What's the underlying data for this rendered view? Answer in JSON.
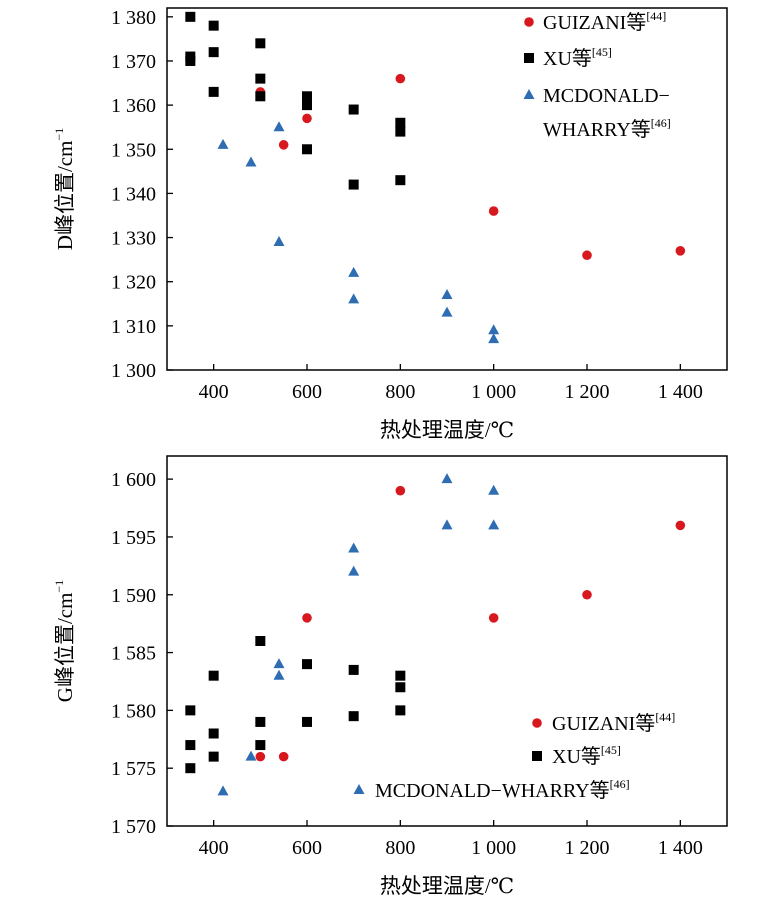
{
  "series_styles": [
    {
      "marker": "circle",
      "color": "#d7191f"
    },
    {
      "marker": "square",
      "color": "#000000"
    },
    {
      "marker": "triangle",
      "color": "#2f6db3"
    }
  ],
  "chart_data": [
    {
      "type": "scatter",
      "title": "",
      "xlabel": "热处理温度/℃",
      "ylabel": "D峰位置/cm",
      "ylabel_sup": "−1",
      "xlim": [
        300,
        1500
      ],
      "ylim": [
        1300,
        1382
      ],
      "xticks": [
        400,
        600,
        800,
        1000,
        1200,
        1400
      ],
      "xtick_labels": [
        "400",
        "600",
        "800",
        "1 000",
        "1 200",
        "1 400"
      ],
      "yticks": [
        1300,
        1310,
        1320,
        1330,
        1340,
        1350,
        1360,
        1370,
        1380
      ],
      "ytick_labels": [
        "1 300",
        "1 310",
        "1 320",
        "1 330",
        "1 340",
        "1 350",
        "1 360",
        "1 370",
        "1 380"
      ],
      "legend_position": "top-right",
      "series": [
        {
          "name": "GUIZANI等",
          "ref": "[44]",
          "points": [
            [
              500,
              1363
            ],
            [
              550,
              1351
            ],
            [
              600,
              1357
            ],
            [
              800,
              1366
            ],
            [
              1000,
              1336
            ],
            [
              1200,
              1326
            ],
            [
              1400,
              1327
            ]
          ]
        },
        {
          "name": "XU等",
          "ref": "[45]",
          "points": [
            [
              350,
              1380
            ],
            [
              350,
              1371
            ],
            [
              350,
              1370
            ],
            [
              400,
              1378
            ],
            [
              400,
              1372
            ],
            [
              400,
              1363
            ],
            [
              500,
              1374
            ],
            [
              500,
              1366
            ],
            [
              500,
              1362
            ],
            [
              600,
              1362
            ],
            [
              600,
              1361
            ],
            [
              600,
              1360
            ],
            [
              600,
              1350
            ],
            [
              700,
              1359
            ],
            [
              700,
              1342
            ],
            [
              800,
              1356
            ],
            [
              800,
              1354
            ],
            [
              800,
              1343
            ]
          ]
        },
        {
          "name": "MCDONALD−",
          "name_line2": "WHARRY等",
          "ref": "[46]",
          "points": [
            [
              420,
              1351
            ],
            [
              480,
              1347
            ],
            [
              540,
              1355
            ],
            [
              540,
              1329
            ],
            [
              700,
              1322
            ],
            [
              700,
              1316
            ],
            [
              900,
              1317
            ],
            [
              900,
              1313
            ],
            [
              1000,
              1309
            ],
            [
              1000,
              1307
            ]
          ]
        }
      ]
    },
    {
      "type": "scatter",
      "title": "",
      "xlabel": "热处理温度/℃",
      "ylabel": "G峰位置/cm",
      "ylabel_sup": "−1",
      "xlim": [
        300,
        1500
      ],
      "ylim": [
        1570,
        1602
      ],
      "xticks": [
        400,
        600,
        800,
        1000,
        1200,
        1400
      ],
      "xtick_labels": [
        "400",
        "600",
        "800",
        "1 000",
        "1 200",
        "1 400"
      ],
      "yticks": [
        1570,
        1575,
        1580,
        1585,
        1590,
        1595,
        1600
      ],
      "ytick_labels": [
        "1 570",
        "1 575",
        "1 580",
        "1 585",
        "1 590",
        "1 595",
        "1 600"
      ],
      "legend_position": "bottom-right",
      "series": [
        {
          "name": "GUIZANI等",
          "ref": "[44]",
          "points": [
            [
              500,
              1576
            ],
            [
              550,
              1576
            ],
            [
              600,
              1588
            ],
            [
              800,
              1599
            ],
            [
              1000,
              1588
            ],
            [
              1200,
              1590
            ],
            [
              1400,
              1596
            ]
          ]
        },
        {
          "name": "XU等",
          "ref": "[45]",
          "points": [
            [
              350,
              1580
            ],
            [
              350,
              1577
            ],
            [
              350,
              1575
            ],
            [
              400,
              1583
            ],
            [
              400,
              1578
            ],
            [
              400,
              1576
            ],
            [
              500,
              1586
            ],
            [
              500,
              1579
            ],
            [
              500,
              1577
            ],
            [
              600,
              1584
            ],
            [
              600,
              1579
            ],
            [
              700,
              1583.5
            ],
            [
              700,
              1579.5
            ],
            [
              800,
              1583
            ],
            [
              800,
              1582
            ],
            [
              800,
              1580
            ]
          ]
        },
        {
          "name": "MCDONALD−WHARRY等",
          "ref": "[46]",
          "points": [
            [
              420,
              1573
            ],
            [
              480,
              1576
            ],
            [
              540,
              1584
            ],
            [
              540,
              1583
            ],
            [
              700,
              1594
            ],
            [
              700,
              1592
            ],
            [
              900,
              1600
            ],
            [
              900,
              1596
            ],
            [
              1000,
              1599
            ],
            [
              1000,
              1596
            ]
          ]
        }
      ]
    }
  ]
}
